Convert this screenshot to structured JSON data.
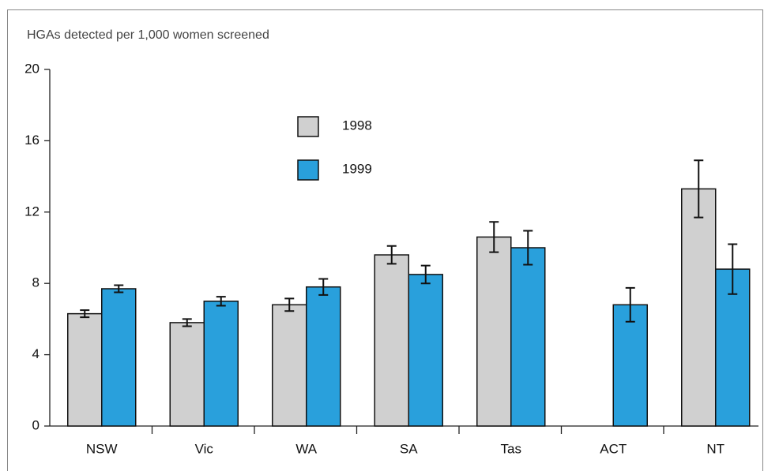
{
  "chart_data": {
    "type": "bar",
    "title": "HGAs detected per 1,000 women screened",
    "categories": [
      "NSW",
      "Vic",
      "WA",
      "SA",
      "Tas",
      "ACT",
      "NT"
    ],
    "series": [
      {
        "name": "1998",
        "color": "#d0d0d0",
        "values": [
          6.3,
          5.8,
          6.8,
          9.6,
          10.6,
          null,
          13.3
        ],
        "errors": [
          0.2,
          0.2,
          0.35,
          0.5,
          0.85,
          null,
          1.6
        ]
      },
      {
        "name": "1999",
        "color": "#29a0dc",
        "values": [
          7.7,
          7.0,
          7.8,
          8.5,
          10.0,
          6.8,
          8.8
        ],
        "errors": [
          0.2,
          0.25,
          0.45,
          0.5,
          0.95,
          0.95,
          1.4
        ]
      }
    ],
    "ylim": [
      0,
      20
    ],
    "yticks": [
      0,
      4,
      8,
      12,
      16,
      20
    ],
    "grid": false
  }
}
